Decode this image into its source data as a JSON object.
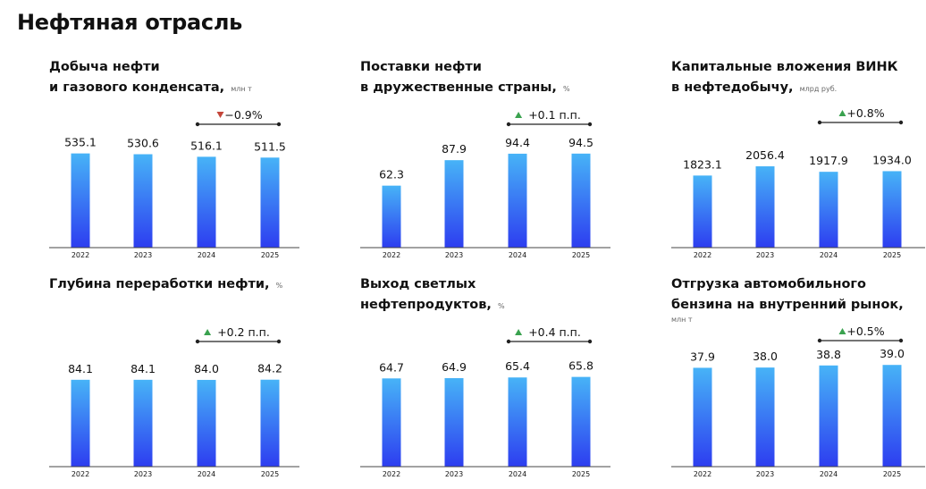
{
  "page_title": "Нефтяная отрасль",
  "colors": {
    "bar_top": "#47b3f7",
    "bar_bottom": "#2d3df0",
    "up": "#3aa24f",
    "down": "#c4463a",
    "axis": "#444444"
  },
  "chart_data": [
    {
      "type": "bar",
      "title_line1": "Добыча нефти",
      "title_line2": "и газового конденсата,",
      "unit": "млн т",
      "categories": [
        "2022",
        "2023",
        "2024",
        "2025"
      ],
      "values": [
        535.1,
        530.6,
        516.1,
        511.5
      ],
      "labels": [
        "535.1",
        "530.6",
        "516.1",
        "511.5"
      ],
      "ylim": [
        0,
        650
      ],
      "change": {
        "direction": "down",
        "text": "−0.9%"
      }
    },
    {
      "type": "bar",
      "title_line1": "Поставки нефти",
      "title_line2": "в дружественные страны,",
      "unit": "%",
      "categories": [
        "2022",
        "2023",
        "2024",
        "2025"
      ],
      "values": [
        62.3,
        87.9,
        94.4,
        94.5
      ],
      "labels": [
        "62.3",
        "87.9",
        "94.4",
        "94.5"
      ],
      "ylim": [
        0,
        115
      ],
      "change": {
        "direction": "up",
        "text": "+0.1 п.п."
      }
    },
    {
      "type": "bar",
      "title_line1": "Капитальные вложения ВИНК",
      "title_line2": "в нефтедобычу,",
      "unit": "млрд руб.",
      "categories": [
        "2022",
        "2023",
        "2024",
        "2025"
      ],
      "values": [
        1823.1,
        2056.4,
        1917.9,
        1934.0
      ],
      "labels": [
        "1823.1",
        "2056.4",
        "1917.9",
        "1934.0"
      ],
      "ylim": [
        0,
        2600
      ],
      "change": {
        "direction": "up",
        "text": "+0.8%"
      }
    },
    {
      "type": "bar",
      "title_line1": "Глубина переработки нефти,",
      "title_line2": "",
      "unit": "%",
      "categories": [
        "2022",
        "2023",
        "2024",
        "2025"
      ],
      "values": [
        84.1,
        84.1,
        84.0,
        84.2
      ],
      "labels": [
        "84.1",
        "84.1",
        "84.0",
        "84.2"
      ],
      "ylim": [
        0,
        103
      ],
      "change": {
        "direction": "up",
        "text": "+0.2 п.п."
      }
    },
    {
      "type": "bar",
      "title_line1": "Выход светлых",
      "title_line2": "нефтепродуктов,",
      "unit": "%",
      "categories": [
        "2022",
        "2023",
        "2024",
        "2025"
      ],
      "values": [
        64.7,
        64.9,
        65.4,
        65.8
      ],
      "labels": [
        "64.7",
        "64.9",
        "65.4",
        "65.8"
      ],
      "ylim": [
        0,
        78
      ],
      "change": {
        "direction": "up",
        "text": "+0.4 п.п."
      }
    },
    {
      "type": "bar",
      "title_line1": "Отгрузка автомобильного",
      "title_line2": "бензина на внутренний рынок,",
      "unit": "млн т",
      "categories": [
        "2022",
        "2023",
        "2024",
        "2025"
      ],
      "values": [
        37.9,
        38.0,
        38.8,
        39.0
      ],
      "labels": [
        "37.9",
        "38.0",
        "38.8",
        "39.0"
      ],
      "ylim": [
        0,
        42.5
      ],
      "change": {
        "direction": "up",
        "text": "+0.5%"
      }
    }
  ]
}
